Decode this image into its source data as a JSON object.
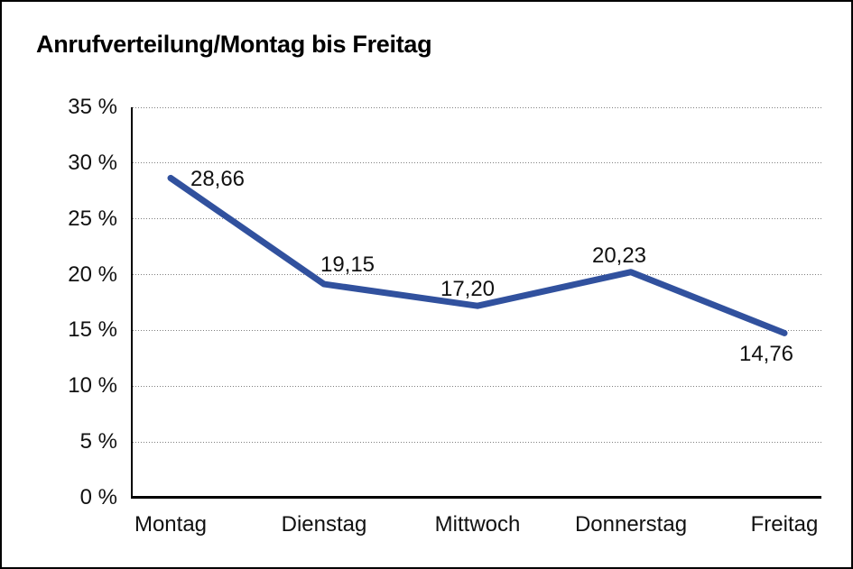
{
  "chart_data": {
    "type": "line",
    "title": "Anrufverteilung/Montag bis Freitag",
    "categories": [
      "Montag",
      "Dienstag",
      "Mittwoch",
      "Donnerstag",
      "Freitag"
    ],
    "values": [
      28.66,
      19.15,
      17.2,
      20.23,
      14.76
    ],
    "value_labels": [
      "28,66",
      "19,15",
      "17,20",
      "20,23",
      "14,76"
    ],
    "ylim": [
      0,
      35
    ],
    "ytick_step": 5,
    "ytick_labels": [
      "0 %",
      "5 %",
      "10 %",
      "15 %",
      "20 %",
      "25 %",
      "30 %",
      "35 %"
    ],
    "xlabel": "",
    "ylabel": "",
    "grid": "horizontal-dotted",
    "legend": "none",
    "line_color": "#31519e",
    "axis_color": "#000000",
    "grid_color": "#7f7f7f",
    "background_color": "#ffffff",
    "border_color": "#000000"
  }
}
